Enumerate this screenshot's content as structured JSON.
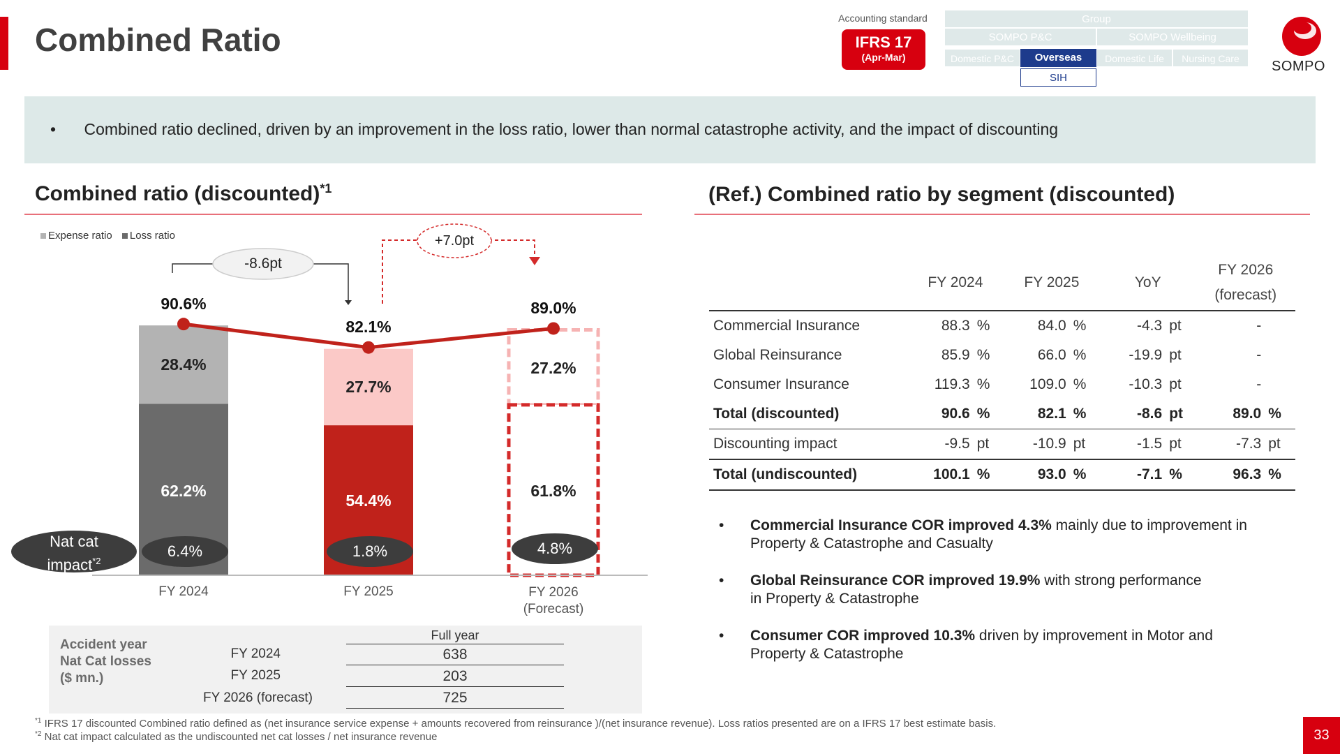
{
  "header": {
    "title": "Combined Ratio",
    "accounting_label": "Accounting standard",
    "ifrs_line1": "IFRS 17",
    "ifrs_line2": "(Apr-Mar)",
    "logo_text": "SOMPO",
    "nav": {
      "group": "Group",
      "pc": "SOMPO P&C",
      "wellbeing": "SOMPO Wellbeing",
      "domestic_pc": "Domestic P&C",
      "overseas": "Overseas",
      "domestic_life": "Domestic Life",
      "nursing_care": "Nursing Care",
      "sih": "SIH"
    }
  },
  "banner": {
    "bullet": "•",
    "text": "Combined ratio declined, driven by an improvement in the loss ratio, lower than normal catastrophe activity, and the impact of discounting"
  },
  "left": {
    "section_title": "Combined ratio (discounted)",
    "section_title_sup": "*1",
    "legend": {
      "expense": "Expense ratio",
      "loss": "Loss ratio"
    },
    "annot_down": "-8.6pt",
    "annot_up": "+7.0pt",
    "nat_cat_label": "Nat cat",
    "nat_cat_label2": "impact",
    "nat_cat_sup": "*2"
  },
  "chart_data": {
    "type": "bar",
    "stacked": true,
    "categories": [
      "FY 2024",
      "FY 2025",
      "FY 2026\n(Forecast)"
    ],
    "category_labels": {
      "c1": "FY 2024",
      "c2": "FY 2025",
      "c3a": "FY 2026",
      "c3b": "(Forecast)"
    },
    "series": [
      {
        "name": "Loss ratio",
        "values": [
          62.2,
          54.4,
          61.8
        ],
        "labels": [
          "62.2%",
          "54.4%",
          "61.8%"
        ]
      },
      {
        "name": "Expense ratio",
        "values": [
          28.4,
          27.7,
          27.2
        ],
        "labels": [
          "28.4%",
          "27.7%",
          "27.2%"
        ]
      }
    ],
    "combined_ratio": {
      "values": [
        90.6,
        82.1,
        89.0
      ],
      "labels": [
        "90.6%",
        "82.1%",
        "89.0%"
      ]
    },
    "nat_cat_impact": {
      "values": [
        6.4,
        1.8,
        4.8
      ],
      "labels": [
        "6.4%",
        "1.8%",
        "4.8%"
      ]
    },
    "forecast_index": 2,
    "colors": {
      "loss": [
        "#6b6b6b",
        "#c0221b",
        "#ffffff"
      ],
      "expense": [
        "#b3b3b3",
        "#fbc9c7",
        "#ffffff"
      ],
      "line": "#c0221b",
      "dashed": "#d42a2a"
    }
  },
  "nat_cat_table": {
    "title_lines": [
      "Accident year",
      "Nat Cat losses",
      "($ mn.)"
    ],
    "column": "Full year",
    "rows": [
      {
        "year": "FY 2024",
        "value": "638"
      },
      {
        "year": "FY 2025",
        "value": "203"
      },
      {
        "year": "FY 2026 (forecast)",
        "value": "725"
      }
    ]
  },
  "right": {
    "section_title": "(Ref.) Combined ratio by segment (discounted)",
    "headers": {
      "fy2024": "FY 2024",
      "fy2025": "FY 2025",
      "yoy": "YoY",
      "fy2026a": "FY 2026",
      "fy2026b": "(forecast)"
    },
    "rows": [
      {
        "name": "Commercial Insurance",
        "fy2024": "88.3",
        "u1": "%",
        "fy2025": "84.0",
        "u2": "%",
        "yoy": "-4.3",
        "u3": "pt",
        "fy2026": "-",
        "u4": ""
      },
      {
        "name": "Global Reinsurance",
        "fy2024": "85.9",
        "u1": "%",
        "fy2025": "66.0",
        "u2": "%",
        "yoy": "-19.9",
        "u3": "pt",
        "fy2026": "-",
        "u4": ""
      },
      {
        "name": "Consumer Insurance",
        "fy2024": "119.3",
        "u1": "%",
        "fy2025": "109.0",
        "u2": "%",
        "yoy": "-10.3",
        "u3": "pt",
        "fy2026": "-",
        "u4": ""
      },
      {
        "name": "Total (discounted)",
        "fy2024": "90.6",
        "u1": "%",
        "fy2025": "82.1",
        "u2": "%",
        "yoy": "-8.6",
        "u3": "pt",
        "fy2026": "89.0",
        "u4": "%"
      },
      {
        "name": "Discounting impact",
        "fy2024": "-9.5",
        "u1": "pt",
        "fy2025": "-10.9",
        "u2": "pt",
        "yoy": "-1.5",
        "u3": "pt",
        "fy2026": "-7.3",
        "u4": "pt"
      },
      {
        "name": "Total (undiscounted)",
        "fy2024": "100.1",
        "u1": "%",
        "fy2025": "93.0",
        "u2": "%",
        "yoy": "-7.1",
        "u3": "%",
        "fy2026": "96.3",
        "u4": "%"
      }
    ],
    "bullets": [
      {
        "bold": "Commercial Insurance COR improved 4.3%",
        "rest": " mainly due to improvement in",
        "line2": "Property & Catastrophe and Casualty"
      },
      {
        "bold": "Global Reinsurance COR improved 19.9%",
        "rest": " with strong performance",
        "line2": "in Property & Catastrophe"
      },
      {
        "bold": "Consumer COR improved 10.3%",
        "rest": " driven by improvement in Motor and",
        "line2": "Property & Catastrophe"
      }
    ]
  },
  "footnotes": {
    "f1_sup": "*1",
    "f1": " IFRS 17 discounted Combined ratio defined as (net insurance service expense + amounts recovered from reinsurance )/(net insurance revenue). Loss ratios presented are on a IFRS 17 best estimate basis.",
    "f2_sup": "*2",
    "f2": " Nat cat impact calculated as the undiscounted net cat losses / net insurance revenue"
  },
  "page_number": "33"
}
